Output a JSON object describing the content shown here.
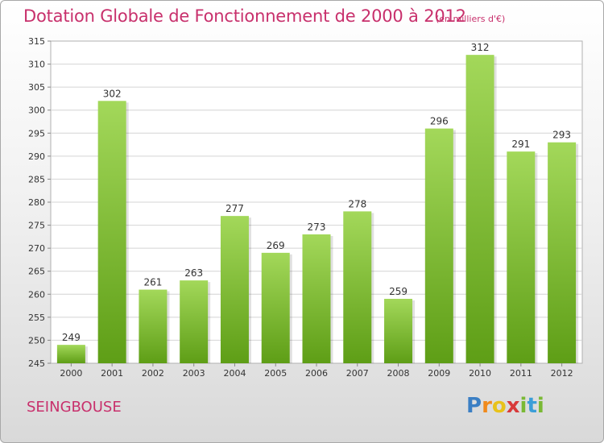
{
  "title": "Dotation Globale de Fonctionnement de 2000 à 2012",
  "unit_note": "(en milliers d'€)",
  "commune": "SEINGBOUSE",
  "logo": {
    "letters": [
      "P",
      "r",
      "o",
      "x",
      "i",
      "t",
      "i"
    ],
    "colors": [
      "#3b7fc4",
      "#f08a1c",
      "#e8c21a",
      "#d83a3a",
      "#7ab935",
      "#3b9ed8",
      "#7ab935"
    ]
  },
  "colors": {
    "bar_top": "#a3d85a",
    "bar_bottom": "#5e9e16",
    "accent": "#c8306c"
  },
  "chart_data": {
    "type": "bar",
    "categories": [
      "2000",
      "2001",
      "2002",
      "2003",
      "2004",
      "2005",
      "2006",
      "2007",
      "2008",
      "2009",
      "2010",
      "2011",
      "2012"
    ],
    "values": [
      249,
      302,
      261,
      263,
      277,
      269,
      273,
      278,
      259,
      296,
      312,
      291,
      293
    ],
    "ylim": [
      245,
      315
    ],
    "yticks": [
      245,
      250,
      255,
      260,
      265,
      270,
      275,
      280,
      285,
      290,
      295,
      300,
      305,
      310,
      315
    ],
    "grid": true,
    "data_labels": true
  }
}
